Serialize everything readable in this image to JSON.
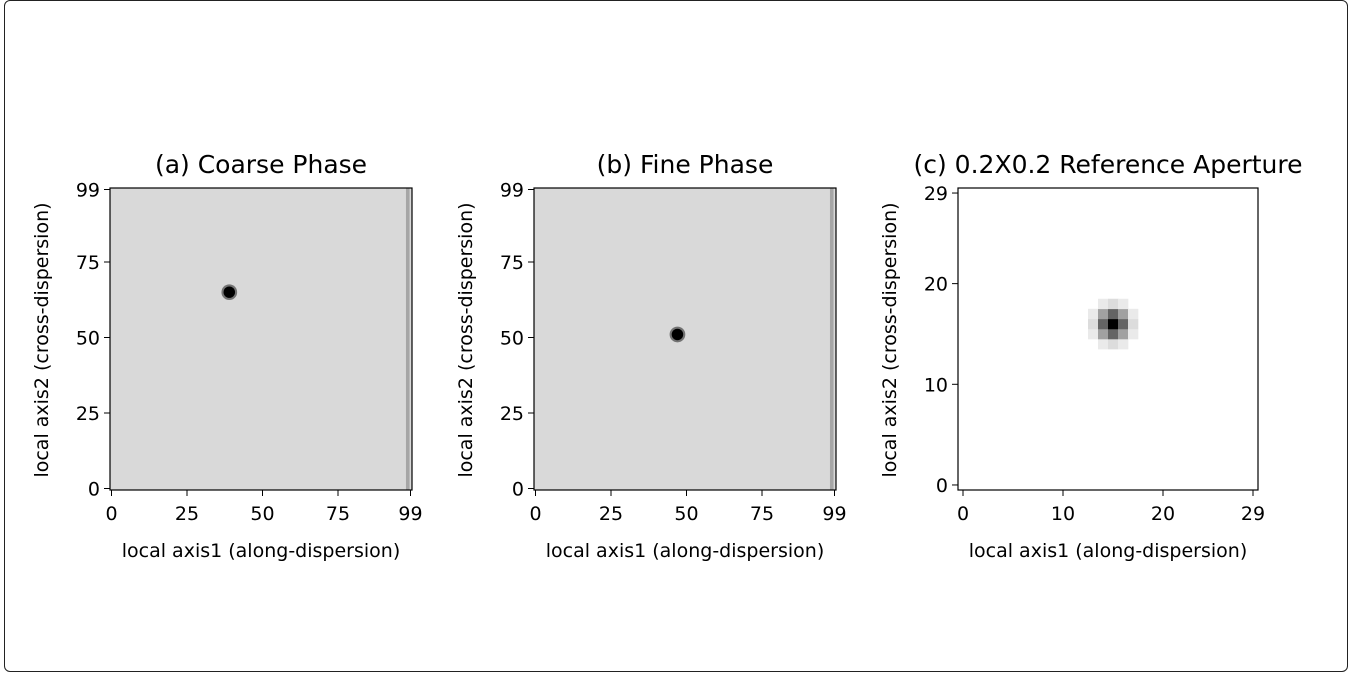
{
  "chart_data": [
    {
      "type": "heatmap",
      "title": "(a) Coarse Phase",
      "xlabel": "local axis1 (along-dispersion)",
      "ylabel": "local axis2 (cross-dispersion)",
      "xlim": [
        0,
        99
      ],
      "ylim": [
        0,
        99
      ],
      "xticks": [
        0,
        25,
        50,
        75,
        99
      ],
      "yticks": [
        0,
        25,
        50,
        75,
        99
      ],
      "colormap": "gray_r",
      "background_level": 0.15,
      "source": {
        "x": 39,
        "y": 65,
        "peak": 1.0
      },
      "edge_stripe": {
        "x": 98,
        "level": 0.35
      }
    },
    {
      "type": "heatmap",
      "title": "(b) Fine Phase",
      "xlabel": "local axis1 (along-dispersion)",
      "ylabel": "local axis2 (cross-dispersion)",
      "xlim": [
        0,
        99
      ],
      "ylim": [
        0,
        99
      ],
      "xticks": [
        0,
        25,
        50,
        75,
        99
      ],
      "yticks": [
        0,
        25,
        50,
        75,
        99
      ],
      "colormap": "gray_r",
      "background_level": 0.15,
      "source": {
        "x": 47,
        "y": 51,
        "peak": 1.0
      },
      "edge_stripe": {
        "x": 98,
        "level": 0.35
      }
    },
    {
      "type": "heatmap",
      "title": "(c) 0.2X0.2 Reference Aperture",
      "xlabel": "local axis1 (along-dispersion)",
      "ylabel": "local axis2 (cross-dispersion)",
      "xlim": [
        0,
        29
      ],
      "ylim": [
        0,
        29
      ],
      "xticks": [
        0,
        10,
        20,
        29
      ],
      "yticks": [
        0,
        10,
        20,
        29
      ],
      "colormap": "gray_r",
      "background_level": 0.0,
      "source": {
        "x": 15,
        "y": 16,
        "peak": 1.0
      }
    }
  ]
}
